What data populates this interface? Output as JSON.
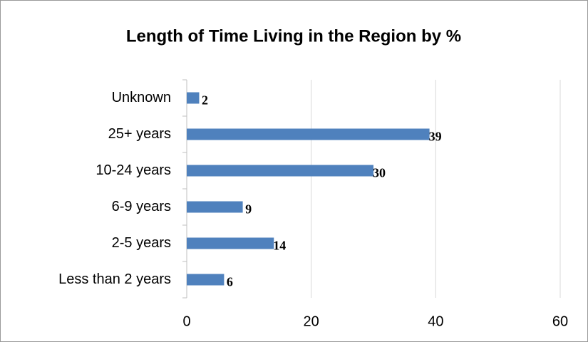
{
  "chart_data": {
    "type": "bar",
    "orientation": "horizontal",
    "title": "Length of Time Living in the Region by %",
    "categories": [
      "Unknown",
      "25+ years",
      "10-24 years",
      "6-9 years",
      "2-5 years",
      "Less than 2 years"
    ],
    "values": [
      2,
      39,
      30,
      9,
      14,
      6
    ],
    "color": "#4f81bd",
    "xlim": [
      0,
      60
    ],
    "xticks": [
      0,
      20,
      40,
      60
    ],
    "grid": true
  }
}
